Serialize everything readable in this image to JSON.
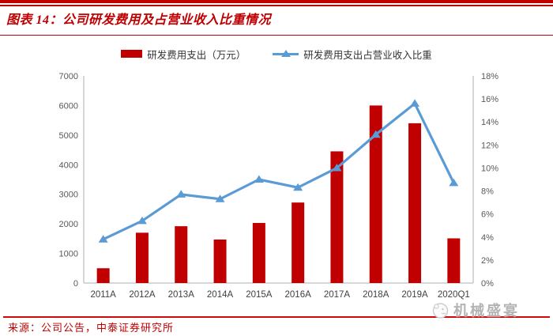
{
  "header": {
    "title": "图表 14：公司研发费用及占营业收入比重情况"
  },
  "chart_data": {
    "type": "combo-bar-line",
    "categories": [
      "2011A",
      "2012A",
      "2013A",
      "2014A",
      "2015A",
      "2016A",
      "2017A",
      "2018A",
      "2019A",
      "2020Q1"
    ],
    "series": [
      {
        "name": "研发费用支出（万元）",
        "type": "bar",
        "axis": "left",
        "color": "#c00000",
        "values": [
          500,
          1700,
          1920,
          1470,
          2030,
          2720,
          4450,
          6000,
          5400,
          1510
        ]
      },
      {
        "name": "研发费用支出占营业收入比重",
        "type": "line",
        "axis": "right",
        "color": "#5b9bd5",
        "values": [
          3.8,
          5.4,
          7.7,
          7.3,
          9.0,
          8.3,
          10.0,
          12.9,
          15.6,
          8.7
        ]
      }
    ],
    "left_axis": {
      "min": 0,
      "max": 7000,
      "step": 1000,
      "tick_labels": [
        "0",
        "1000",
        "2000",
        "3000",
        "4000",
        "5000",
        "6000",
        "7000"
      ]
    },
    "right_axis": {
      "min": 0,
      "max": 18,
      "step": 2,
      "tick_labels": [
        "0%",
        "2%",
        "4%",
        "6%",
        "8%",
        "10%",
        "12%",
        "14%",
        "16%",
        "18%"
      ]
    },
    "legend_position": "top",
    "grid": false,
    "axis_line_color": "#bfbfbf"
  },
  "footer": {
    "source": "来源：公司公告，中泰证券研究所",
    "watermark": "机械盛宴"
  },
  "colors": {
    "accent_red": "#c00000",
    "line_blue": "#5b9bd5",
    "tick_gray": "#595959",
    "watermark_gray": "#b3b3b3"
  }
}
